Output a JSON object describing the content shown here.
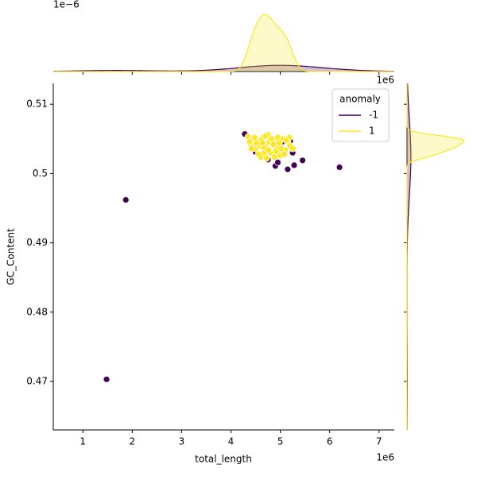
{
  "chart_data": {
    "type": "scatter",
    "xlabel": "total_length",
    "ylabel": "GC_Content",
    "x_offset_label": "1e6",
    "top_offset_label": "1e−6",
    "legend_title": "anomaly",
    "legend": "upper right",
    "xlim": [
      400000,
      7310000
    ],
    "xticks": [
      {
        "value": 1000000,
        "label": "1"
      },
      {
        "value": 2000000,
        "label": "2"
      },
      {
        "value": 3000000,
        "label": "3"
      },
      {
        "value": 4000000,
        "label": "4"
      },
      {
        "value": 5000000,
        "label": "5"
      },
      {
        "value": 6000000,
        "label": "6"
      },
      {
        "value": 7000000,
        "label": "7"
      }
    ],
    "ylim": [
      0.463,
      0.513
    ],
    "yticks": [
      0.47,
      0.48,
      0.49,
      0.5,
      0.51
    ],
    "series": [
      {
        "name": "-1",
        "color": "#440154",
        "x": [
          1480000,
          1870000,
          6200000,
          5450000,
          5150000,
          5280000,
          4900000,
          4280000,
          4500000,
          5050000,
          5250000,
          4950000,
          4750000,
          5200000,
          4600000
        ],
        "y": [
          0.4703,
          0.4962,
          0.5009,
          0.5019,
          0.5006,
          0.5012,
          0.5011,
          0.5057,
          0.5031,
          0.5046,
          0.503,
          0.5016,
          0.502,
          0.5047,
          0.504
        ]
      },
      {
        "name": "1",
        "color": "#fde725",
        "x": [
          4350000,
          4400000,
          4450000,
          4500000,
          4550000,
          4600000,
          4650000,
          4700000,
          4750000,
          4800000,
          4850000,
          4900000,
          4950000,
          5000000,
          5050000,
          5100000,
          5150000,
          5200000,
          5250000,
          4380000,
          4480000,
          4580000,
          4680000,
          4780000,
          4880000,
          4980000,
          5080000,
          5180000,
          4420000,
          4520000,
          4620000,
          4720000,
          4820000,
          4920000,
          5020000,
          5120000,
          4660000,
          4760000,
          4560000,
          4860000,
          4700000,
          4640000
        ],
        "y": [
          0.5053,
          0.5042,
          0.505,
          0.5036,
          0.5046,
          0.5024,
          0.5052,
          0.504,
          0.5056,
          0.503,
          0.5048,
          0.5038,
          0.5052,
          0.5026,
          0.505,
          0.5034,
          0.5046,
          0.504,
          0.5036,
          0.5046,
          0.5052,
          0.504,
          0.503,
          0.5046,
          0.5024,
          0.5044,
          0.5028,
          0.5052,
          0.5036,
          0.5044,
          0.5048,
          0.5022,
          0.505,
          0.5032,
          0.5036,
          0.5048,
          0.5038,
          0.5034,
          0.5028,
          0.5042,
          0.5054,
          0.5044
        ]
      }
    ]
  }
}
